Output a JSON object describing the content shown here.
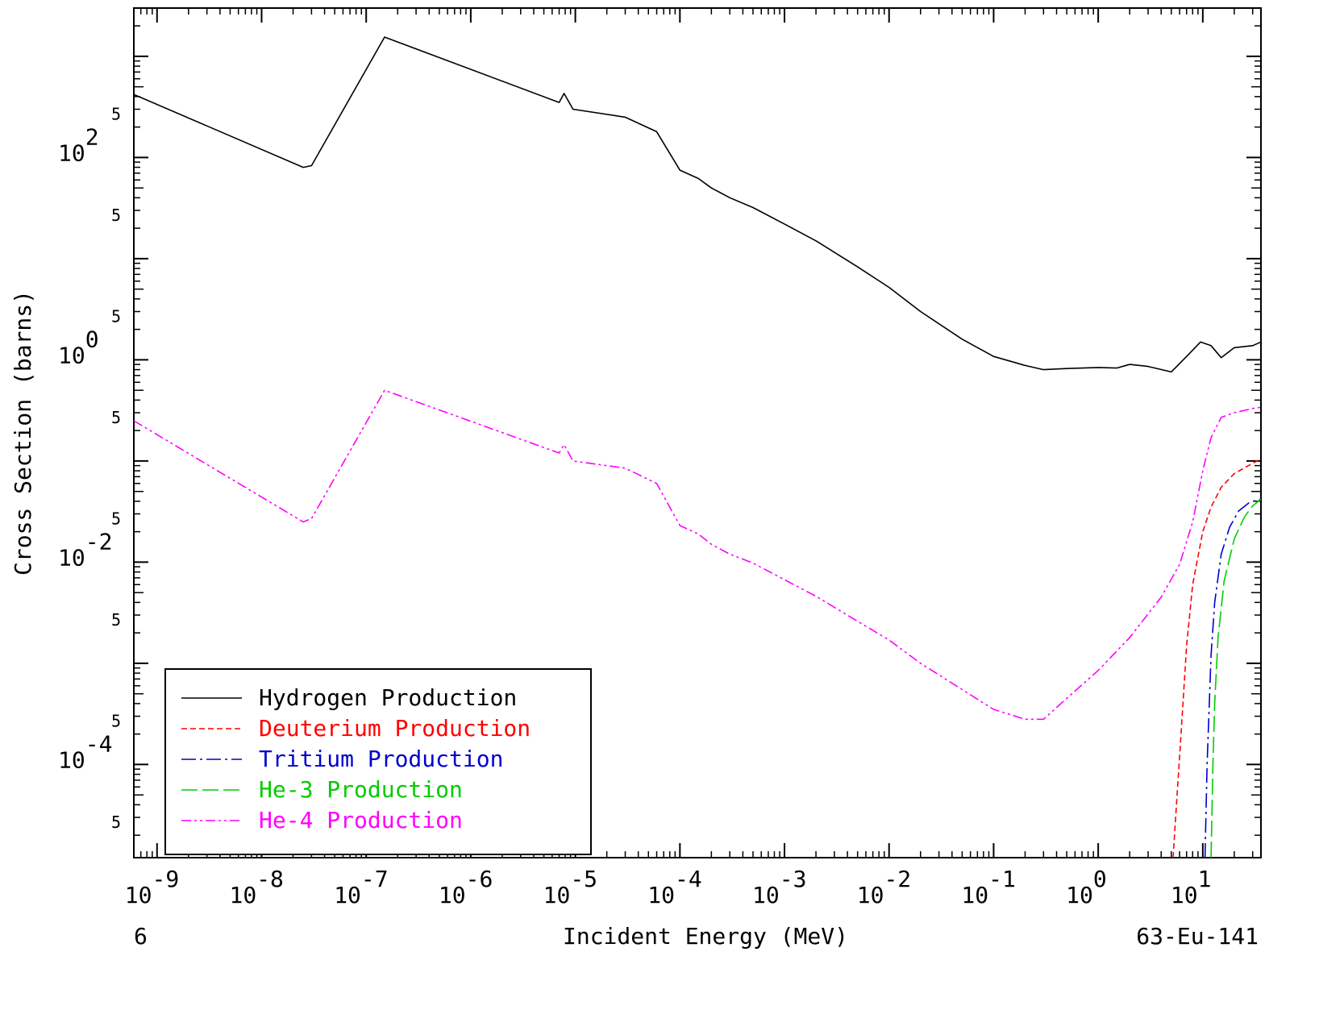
{
  "chart_data": {
    "type": "line",
    "xlabel": "Incident Energy (MeV)",
    "ylabel": "Cross Section (barns)",
    "x_scale": "log",
    "y_scale": "log",
    "xlim": [
      6e-10,
      36
    ],
    "ylim": [
      1.2e-05,
      3000
    ],
    "x_ticks": [
      {
        "base": "10",
        "exp": "-9",
        "value": 1e-09
      },
      {
        "base": "10",
        "exp": "-8",
        "value": 1e-08
      },
      {
        "base": "10",
        "exp": "-7",
        "value": 1e-07
      },
      {
        "base": "10",
        "exp": "-6",
        "value": 1e-06
      },
      {
        "base": "10",
        "exp": "-5",
        "value": 1e-05
      },
      {
        "base": "10",
        "exp": "-4",
        "value": 0.0001
      },
      {
        "base": "10",
        "exp": "-3",
        "value": 0.001
      },
      {
        "base": "10",
        "exp": "-2",
        "value": 0.01
      },
      {
        "base": "10",
        "exp": "-1",
        "value": 0.1
      },
      {
        "base": "10",
        "exp": "0",
        "value": 1
      },
      {
        "base": "10",
        "exp": "1",
        "value": 10
      }
    ],
    "y_ticks": [
      {
        "base": "10",
        "exp": "2",
        "value": 100
      },
      {
        "base": "10",
        "exp": "0",
        "value": 1
      },
      {
        "base": "10",
        "exp": "-2",
        "value": 0.01
      },
      {
        "base": "10",
        "exp": "-4",
        "value": 0.0001
      }
    ],
    "y_minor_label": "5",
    "y_minor_ticks": [
      500,
      50,
      5,
      0.5,
      0.05,
      0.005,
      0.0005,
      5e-05
    ],
    "footer_left": "6",
    "footer_right": "63-Eu-141",
    "grid": false,
    "legend_position": "bottom-left",
    "series": [
      {
        "name": "Hydrogen Production",
        "color": "#000000",
        "dash": "solid",
        "x": [
          6e-10,
          2.5e-08,
          3e-08,
          1.5e-07,
          7e-06,
          7.8e-06,
          9.5e-06,
          3e-05,
          6e-05,
          0.0001,
          0.00015,
          0.0002,
          0.0003,
          0.0005,
          0.001,
          0.002,
          0.005,
          0.01,
          0.02,
          0.05,
          0.1,
          0.2,
          0.3,
          0.5,
          1.0,
          1.5,
          2.0,
          3.0,
          5.0,
          7.0,
          9.5,
          12,
          15,
          20,
          30,
          36
        ],
        "y": [
          420,
          80,
          83,
          1550,
          350,
          430,
          300,
          250,
          180,
          75,
          62,
          50,
          40,
          32,
          22,
          15,
          8.3,
          5.2,
          3.0,
          1.6,
          1.08,
          0.88,
          0.8,
          0.82,
          0.84,
          0.83,
          0.9,
          0.86,
          0.76,
          1.08,
          1.5,
          1.38,
          1.05,
          1.32,
          1.38,
          1.5
        ]
      },
      {
        "name": "Deuterium Production",
        "color": "#ff0000",
        "dash": "short-dash",
        "x": [
          5.2,
          5.6,
          6.0,
          7.0,
          8.0,
          10.0,
          12.0,
          15.0,
          20.0,
          30.0,
          36.0
        ],
        "y": [
          1.2e-05,
          4e-05,
          0.00012,
          0.0015,
          0.006,
          0.02,
          0.035,
          0.055,
          0.075,
          0.095,
          0.105
        ]
      },
      {
        "name": "Tritium Production",
        "color": "#0000cc",
        "dash": "dash-dot",
        "x": [
          10.5,
          11.0,
          12.0,
          13.0,
          15.0,
          18.0,
          22.0,
          28.0,
          36.0
        ],
        "y": [
          1.2e-05,
          0.0001,
          0.0012,
          0.004,
          0.012,
          0.022,
          0.032,
          0.039,
          0.042
        ]
      },
      {
        "name": "He-3 Production",
        "color": "#00cc00",
        "dash": "long-dash",
        "x": [
          12.0,
          12.5,
          13.0,
          14.0,
          16.0,
          20.0,
          25.0,
          30.0,
          36.0
        ],
        "y": [
          1.2e-05,
          0.0001,
          0.0004,
          0.0018,
          0.0065,
          0.017,
          0.028,
          0.036,
          0.042
        ]
      },
      {
        "name": "He-4 Production",
        "color": "#ff00ff",
        "dash": "dash-dot-dot",
        "x": [
          6e-10,
          2.5e-08,
          3e-08,
          1.5e-07,
          7e-06,
          7.8e-06,
          9.5e-06,
          3e-05,
          6e-05,
          0.0001,
          0.00015,
          0.0002,
          0.0003,
          0.0005,
          0.001,
          0.002,
          0.005,
          0.01,
          0.02,
          0.05,
          0.1,
          0.2,
          0.3,
          0.5,
          1.0,
          2.0,
          4.0,
          6.0,
          8.0,
          10.0,
          12.0,
          15.0,
          20.0,
          30.0,
          36.0
        ],
        "y": [
          0.25,
          0.025,
          0.027,
          0.5,
          0.12,
          0.145,
          0.1,
          0.085,
          0.06,
          0.023,
          0.019,
          0.015,
          0.012,
          0.0098,
          0.0067,
          0.0046,
          0.0026,
          0.0017,
          0.001,
          0.00055,
          0.00035,
          0.00028,
          0.00028,
          0.00045,
          0.00085,
          0.0018,
          0.0045,
          0.0095,
          0.025,
          0.08,
          0.17,
          0.27,
          0.3,
          0.33,
          0.34
        ]
      }
    ]
  }
}
